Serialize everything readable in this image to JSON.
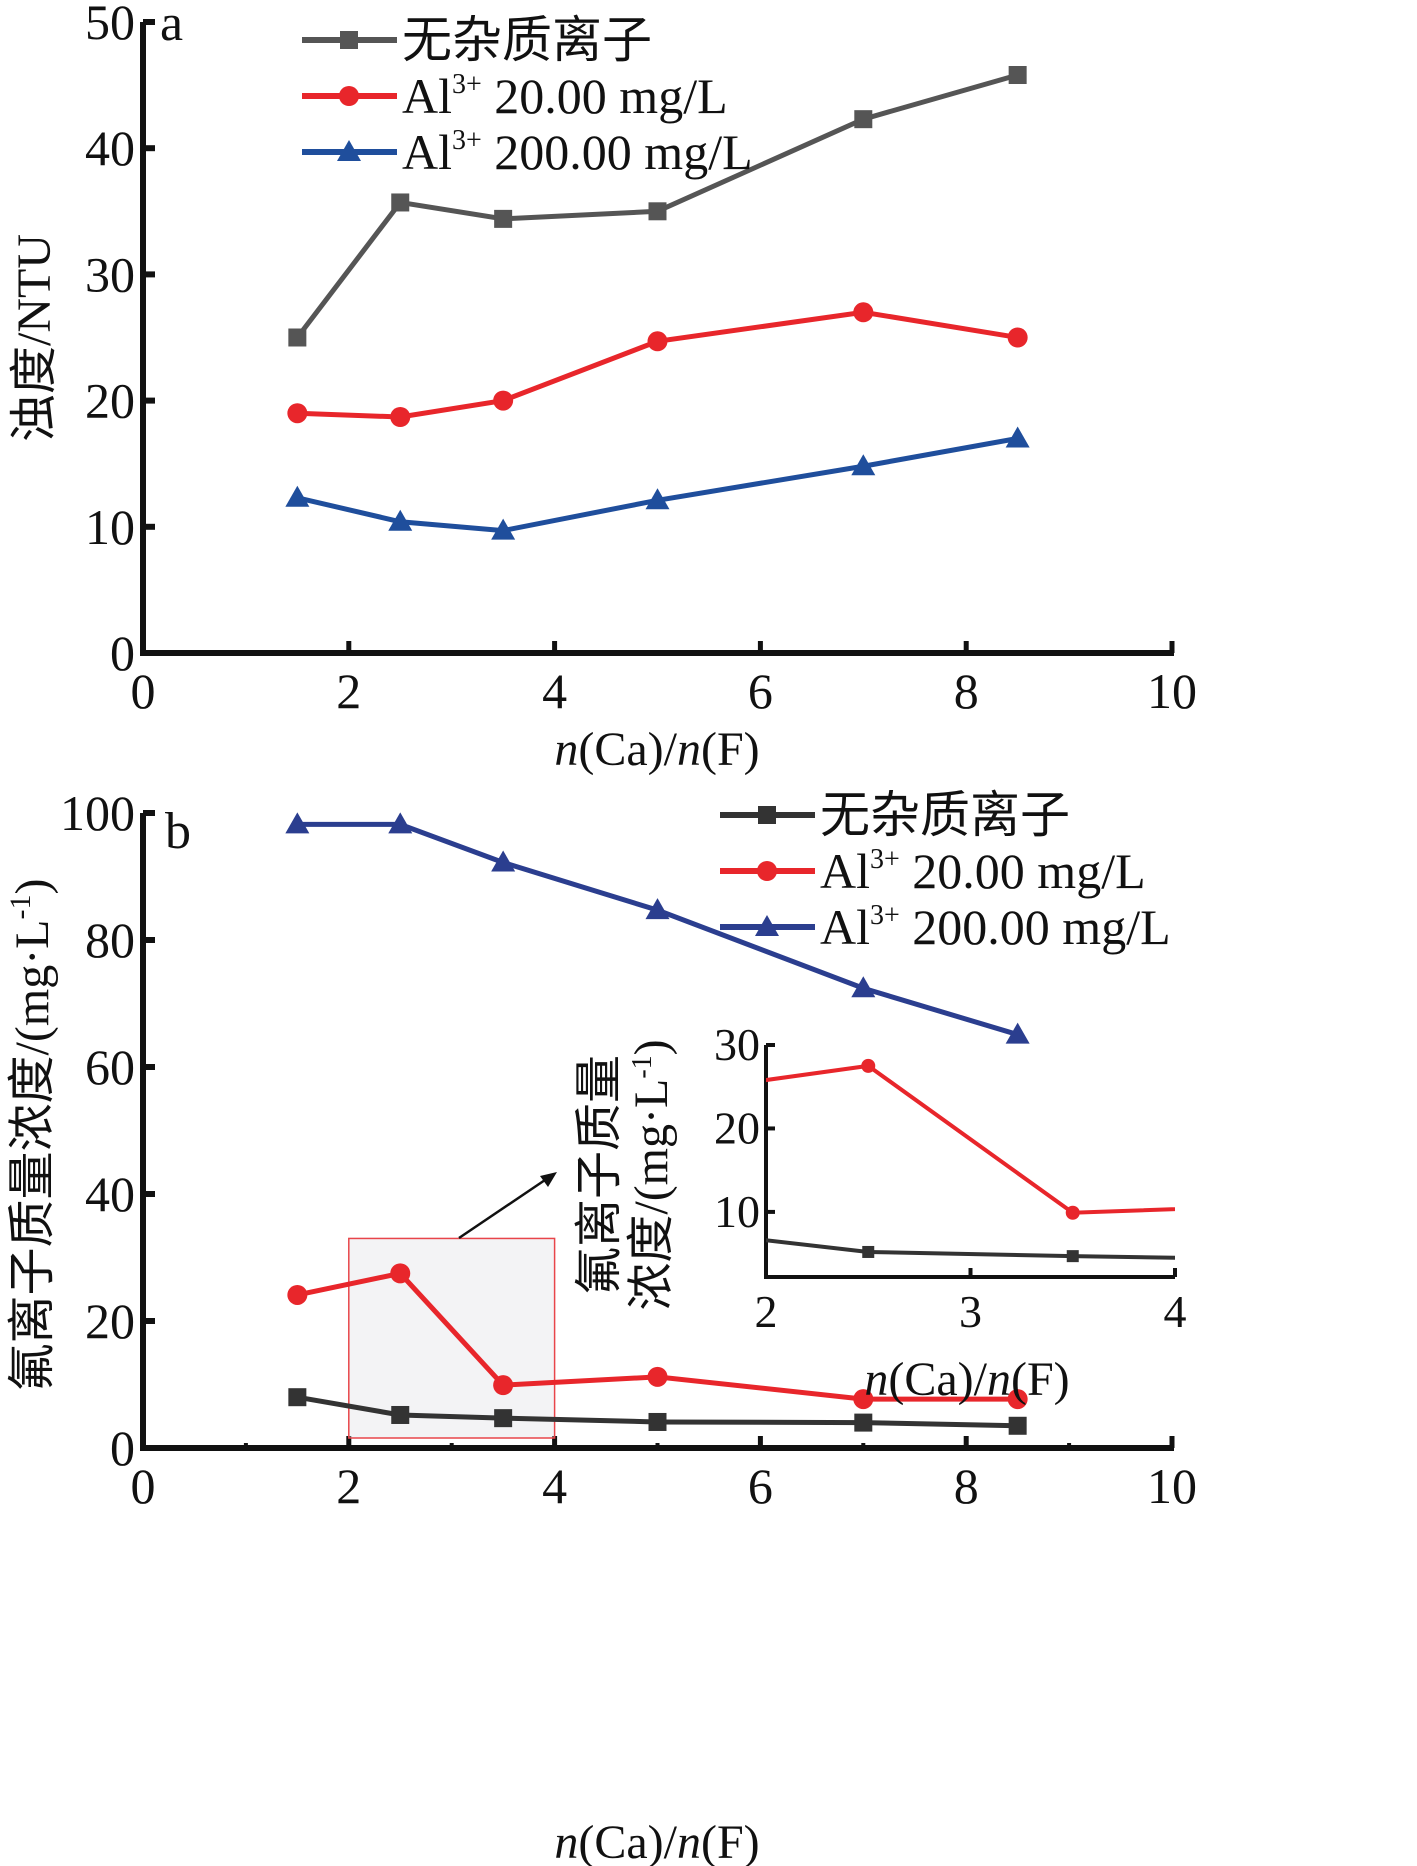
{
  "chart_data": [
    {
      "type": "line",
      "panel": "a",
      "title": "",
      "xlabel": "n(Ca)/n(F)",
      "ylabel": "浊度/NTU",
      "xlim": [
        0,
        10
      ],
      "ylim": [
        0,
        50
      ],
      "xticks": [
        0,
        2,
        4,
        6,
        8,
        10
      ],
      "yticks": [
        0,
        10,
        20,
        30,
        40,
        50
      ],
      "grid": false,
      "legend_position": "top-center",
      "x": [
        1.5,
        2.5,
        3.5,
        5,
        7,
        8.5
      ],
      "series": [
        {
          "name": "无杂质离子",
          "label_main": "无杂质离子",
          "label_sup": "",
          "label_rest": "",
          "marker": "square",
          "color": "#555555",
          "values": [
            25.0,
            35.7,
            34.4,
            35.0,
            42.3,
            45.8
          ]
        },
        {
          "name": "Al3+ 20.00 mg/L",
          "label_main": "Al",
          "label_sup": "3+",
          "label_rest": " 20.00 mg/L",
          "marker": "circle",
          "color": "#e8262b",
          "values": [
            19.0,
            18.7,
            20.0,
            24.7,
            27.0,
            25.0
          ]
        },
        {
          "name": "Al3+ 200.00 mg/L",
          "label_main": "Al",
          "label_sup": "3+",
          "label_rest": " 200.00 mg/L",
          "marker": "triangle",
          "color": "#1f4e9c",
          "values": [
            12.3,
            10.4,
            9.7,
            12.1,
            14.8,
            17.0
          ]
        }
      ]
    },
    {
      "type": "line",
      "panel": "b",
      "title": "",
      "xlabel": "n(Ca)/n(F)",
      "ylabel": "氟离子质量浓度/(mg·L-1)",
      "xlim": [
        0,
        10
      ],
      "ylim": [
        0,
        100
      ],
      "xticks": [
        0,
        2,
        4,
        6,
        8,
        10
      ],
      "yticks": [
        0,
        20,
        40,
        60,
        80,
        100
      ],
      "grid": false,
      "legend_position": "top-right",
      "x": [
        1.5,
        2.5,
        3.5,
        5,
        7,
        8.5
      ],
      "series": [
        {
          "name": "无杂质离子",
          "label_main": "无杂质离子",
          "label_sup": "",
          "label_rest": "",
          "marker": "square",
          "color": "#333333",
          "values": [
            8.0,
            5.2,
            4.7,
            4.1,
            4.0,
            3.5
          ]
        },
        {
          "name": "Al3+ 20.00 mg/L",
          "label_main": "Al",
          "label_sup": "3+",
          "label_rest": " 20.00 mg/L",
          "marker": "circle",
          "color": "#e8262b",
          "values": [
            24.1,
            27.5,
            9.9,
            11.2,
            7.7,
            7.7
          ]
        },
        {
          "name": "Al3+ 200.00 mg/L",
          "label_main": "Al",
          "label_sup": "3+",
          "label_rest": " 200.00 mg/L",
          "marker": "triangle",
          "color": "#2b3e8f",
          "values": [
            98.2,
            98.2,
            92.2,
            84.7,
            72.4,
            65.1
          ]
        }
      ],
      "highlight_region": {
        "x": [
          2,
          4
        ],
        "y": [
          0,
          33
        ]
      },
      "inset": {
        "xlabel": "n(Ca)/n(F)",
        "ylabel_line1": "氟离子质量",
        "ylabel_line2": "浓度/(mg·L-1)",
        "xlim": [
          2,
          4
        ],
        "ylim": [
          2.2,
          30
        ],
        "xticks": [
          2,
          3,
          4
        ],
        "yticks": [
          10,
          20,
          30
        ],
        "series": [
          {
            "name": "无杂质离子",
            "color": "#333333",
            "marker": "square",
            "points": [
              [
                1.5,
                8.0
              ],
              [
                2.5,
                5.2
              ],
              [
                3.5,
                4.7
              ],
              [
                5,
                4.1
              ]
            ]
          },
          {
            "name": "Al3+ 20.00 mg/L",
            "color": "#e8262b",
            "marker": "circle",
            "points": [
              [
                1.5,
                24.1
              ],
              [
                2.5,
                27.5
              ],
              [
                3.5,
                9.9
              ],
              [
                5,
                11.2
              ]
            ]
          }
        ]
      }
    }
  ],
  "labels": {
    "panel_a": "a",
    "panel_b": "b",
    "x_axis_n1": "n",
    "x_axis_ca": "(Ca)/",
    "x_axis_n2": "n",
    "x_axis_f": "(F)",
    "y_axis_a": "浊度/NTU",
    "y_axis_b_main": "氟离子质量浓度/(mg·L",
    "y_axis_b_sup": "-1",
    "y_axis_b_close": ")",
    "inset_y_line1": "氟离子质量",
    "inset_y_line2_main": "浓度/(mg·L",
    "inset_y_line2_sup": "-1",
    "inset_y_line2_close": ")"
  }
}
